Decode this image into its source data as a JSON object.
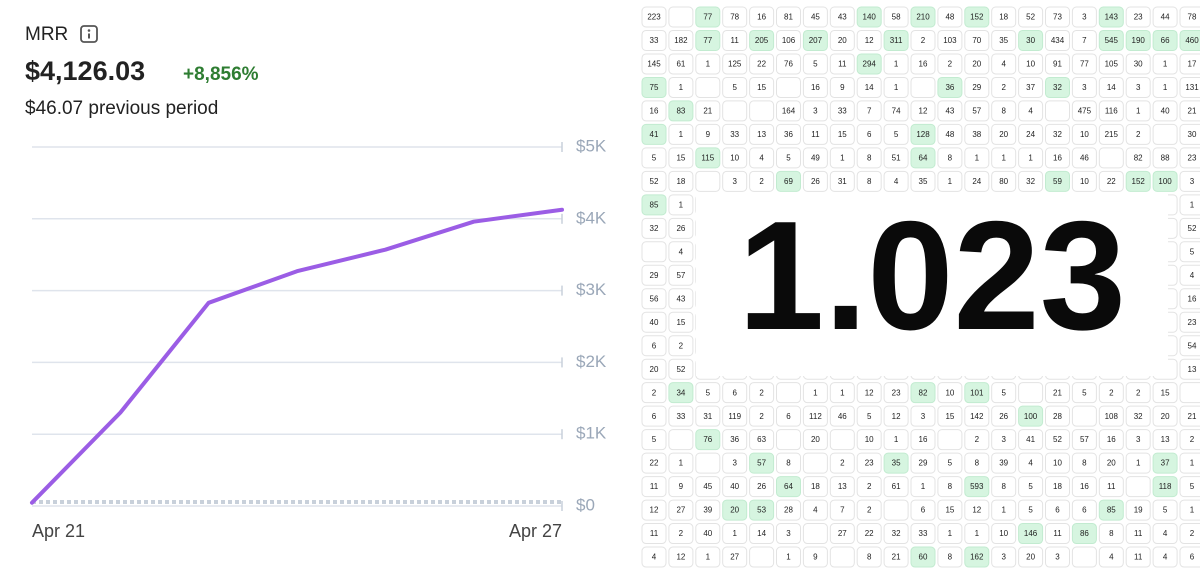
{
  "chart_data": {
    "type": "line",
    "title": "MRR",
    "value": "$4,126.03",
    "change": "+8,856%",
    "subtitle": "$46.07 previous period",
    "categories": [
      "Apr 21",
      null,
      null,
      null,
      null,
      null,
      "Apr 27"
    ],
    "series": [
      {
        "color": "#9b5de5",
        "values": [
          46.07,
          1300,
          2830,
          3270,
          3570,
          3960,
          4126.03
        ]
      },
      {
        "color": "#c8d0da",
        "dashed": true,
        "values": [
          0,
          0,
          0,
          0,
          0,
          0,
          0
        ]
      }
    ],
    "ylim": [
      0,
      5000
    ],
    "yticks": [
      {
        "value": 0,
        "label": "$0"
      },
      {
        "value": 1000,
        "label": "$1K"
      },
      {
        "value": 2000,
        "label": "$2K"
      },
      {
        "value": 3000,
        "label": "$3K"
      },
      {
        "value": 4000,
        "label": "$4K"
      },
      {
        "value": 5000,
        "label": "$5K"
      }
    ],
    "grid": true
  },
  "grid": {
    "overlay": "1.023",
    "rows": [
      [
        223,
        null,
        {
          "value": 77,
          "highlight": true
        },
        78,
        16,
        81,
        45,
        43,
        {
          "value": 140,
          "highlight": true
        },
        58,
        {
          "value": 210,
          "highlight": true
        },
        48,
        {
          "value": 152,
          "highlight": true
        },
        18,
        52,
        73,
        3,
        {
          "value": 143,
          "highlight": true
        },
        23,
        44,
        78
      ],
      [
        33,
        182,
        {
          "value": 77,
          "highlight": true
        },
        11,
        {
          "value": 205,
          "highlight": true
        },
        106,
        {
          "value": 207,
          "highlight": true
        },
        20,
        12,
        {
          "value": 311,
          "highlight": true
        },
        2,
        103,
        70,
        35,
        {
          "value": 30,
          "highlight": true
        },
        434,
        7,
        {
          "value": 545,
          "highlight": true
        },
        {
          "value": 190,
          "highlight": true
        },
        {
          "value": 66,
          "highlight": true
        },
        {
          "value": 460,
          "highlight": true
        }
      ],
      [
        145,
        61,
        1,
        125,
        22,
        76,
        5,
        11,
        {
          "value": 294,
          "highlight": true
        },
        1,
        16,
        2,
        20,
        4,
        10,
        91,
        77,
        105,
        30,
        1,
        17
      ],
      [
        {
          "value": 75,
          "highlight": true
        },
        1,
        null,
        5,
        15,
        null,
        16,
        9,
        14,
        1,
        null,
        {
          "value": 36,
          "highlight": true
        },
        29,
        2,
        37,
        {
          "value": 32,
          "highlight": true
        },
        3,
        14,
        3,
        1,
        131
      ],
      [
        16,
        {
          "value": 83,
          "highlight": true
        },
        21,
        null,
        null,
        164,
        3,
        33,
        7,
        74,
        12,
        43,
        57,
        8,
        4,
        null,
        475,
        116,
        1,
        40,
        21
      ],
      [
        {
          "value": 41,
          "highlight": true
        },
        1,
        9,
        33,
        13,
        36,
        11,
        15,
        6,
        5,
        {
          "value": 128,
          "highlight": true
        },
        48,
        38,
        20,
        24,
        32,
        10,
        215,
        2,
        null,
        30
      ],
      [
        5,
        15,
        {
          "value": 115,
          "highlight": true
        },
        10,
        4,
        5,
        49,
        1,
        8,
        51,
        {
          "value": 64,
          "highlight": true
        },
        8,
        1,
        1,
        1,
        16,
        46,
        null,
        82,
        88,
        23
      ],
      [
        52,
        18,
        null,
        3,
        2,
        {
          "value": 69,
          "highlight": true
        },
        26,
        31,
        8,
        4,
        35,
        1,
        24,
        80,
        32,
        {
          "value": 59,
          "highlight": true
        },
        10,
        22,
        {
          "value": 152,
          "highlight": true
        },
        {
          "value": 100,
          "highlight": true
        },
        3
      ],
      [
        {
          "value": 85,
          "highlight": true
        },
        1,
        null,
        null,
        null,
        null,
        null,
        null,
        null,
        null,
        null,
        null,
        null,
        null,
        null,
        null,
        null,
        null,
        null,
        null,
        1
      ],
      [
        32,
        26,
        null,
        null,
        null,
        null,
        null,
        null,
        null,
        null,
        null,
        null,
        null,
        null,
        null,
        null,
        null,
        null,
        null,
        null,
        52
      ],
      [
        null,
        4,
        null,
        null,
        null,
        null,
        null,
        null,
        null,
        null,
        null,
        null,
        null,
        null,
        null,
        null,
        null,
        null,
        null,
        null,
        5
      ],
      [
        29,
        57,
        null,
        null,
        null,
        null,
        null,
        null,
        null,
        null,
        null,
        null,
        null,
        null,
        null,
        null,
        null,
        null,
        null,
        null,
        4
      ],
      [
        56,
        43,
        null,
        null,
        null,
        null,
        null,
        null,
        null,
        null,
        null,
        null,
        null,
        null,
        null,
        null,
        null,
        null,
        null,
        null,
        16
      ],
      [
        40,
        15,
        null,
        null,
        null,
        null,
        null,
        null,
        null,
        null,
        null,
        null,
        null,
        null,
        null,
        null,
        null,
        null,
        null,
        null,
        23
      ],
      [
        6,
        2,
        null,
        null,
        null,
        null,
        null,
        null,
        null,
        null,
        null,
        null,
        null,
        null,
        null,
        null,
        null,
        null,
        null,
        null,
        54
      ],
      [
        20,
        52,
        null,
        null,
        null,
        null,
        null,
        null,
        null,
        null,
        null,
        null,
        null,
        null,
        null,
        null,
        null,
        null,
        null,
        null,
        13
      ],
      [
        2,
        {
          "value": 34,
          "highlight": true
        },
        5,
        6,
        2,
        null,
        1,
        1,
        12,
        23,
        {
          "value": 82,
          "highlight": true
        },
        10,
        {
          "value": 101,
          "highlight": true
        },
        5,
        null,
        21,
        5,
        2,
        2,
        15,
        null
      ],
      [
        6,
        33,
        31,
        119,
        2,
        6,
        112,
        46,
        5,
        12,
        3,
        15,
        142,
        26,
        {
          "value": 100,
          "highlight": true
        },
        28,
        null,
        108,
        32,
        20,
        21
      ],
      [
        5,
        null,
        {
          "value": 76,
          "highlight": true
        },
        36,
        63,
        null,
        20,
        null,
        10,
        1,
        16,
        null,
        2,
        3,
        41,
        52,
        57,
        16,
        3,
        13,
        2
      ],
      [
        22,
        1,
        null,
        3,
        {
          "value": 57,
          "highlight": true
        },
        8,
        null,
        2,
        23,
        {
          "value": 35,
          "highlight": true
        },
        29,
        5,
        8,
        39,
        4,
        10,
        8,
        20,
        1,
        {
          "value": 37,
          "highlight": true
        },
        1
      ],
      [
        11,
        9,
        45,
        40,
        26,
        {
          "value": 64,
          "highlight": true
        },
        18,
        13,
        2,
        61,
        1,
        8,
        {
          "value": 593,
          "highlight": true
        },
        8,
        5,
        18,
        16,
        11,
        null,
        {
          "value": 118,
          "highlight": true
        },
        5
      ],
      [
        12,
        27,
        39,
        {
          "value": 20,
          "highlight": true
        },
        {
          "value": 53,
          "highlight": true
        },
        28,
        4,
        7,
        2,
        null,
        6,
        15,
        12,
        1,
        5,
        6,
        6,
        {
          "value": 85,
          "highlight": true
        },
        19,
        5,
        1
      ],
      [
        11,
        2,
        40,
        1,
        14,
        3,
        null,
        27,
        22,
        32,
        33,
        1,
        1,
        10,
        {
          "value": 146,
          "highlight": true
        },
        11,
        {
          "value": 86,
          "highlight": true
        },
        8,
        11,
        4,
        2
      ],
      [
        4,
        12,
        1,
        27,
        null,
        1,
        9,
        null,
        8,
        21,
        {
          "value": 60,
          "highlight": true
        },
        8,
        {
          "value": 162,
          "highlight": true
        },
        3,
        20,
        3,
        null,
        4,
        11,
        4,
        6
      ]
    ]
  }
}
